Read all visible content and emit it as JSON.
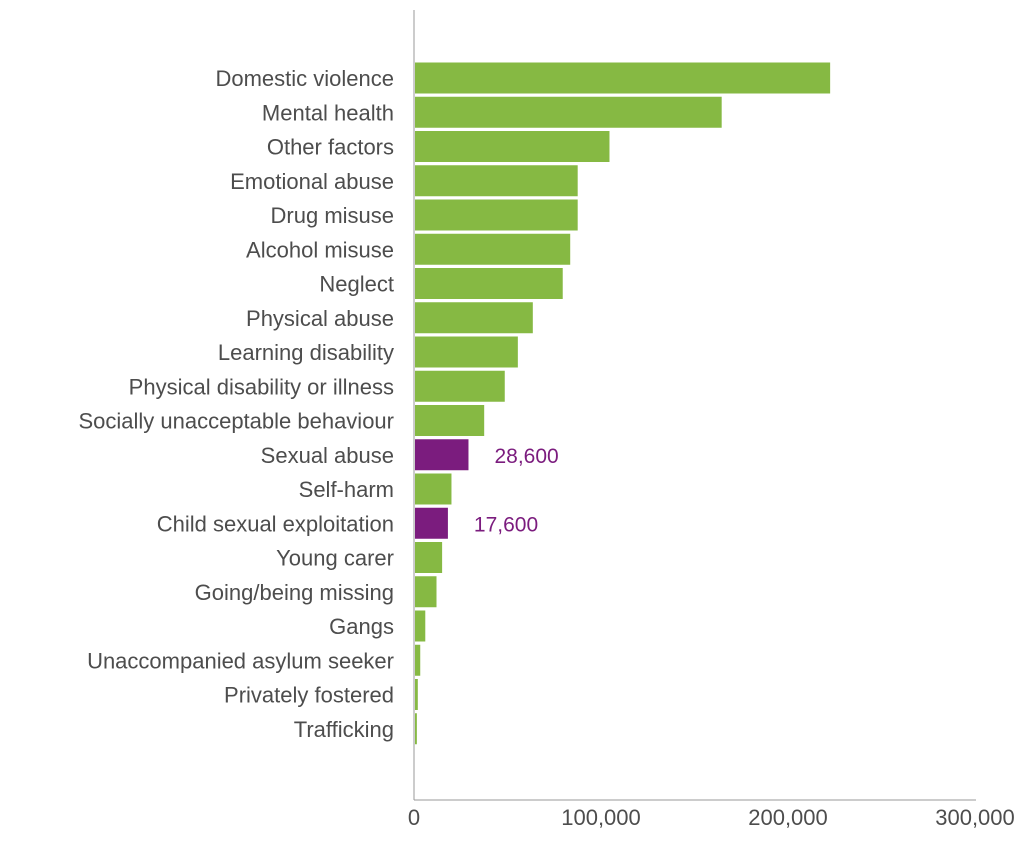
{
  "chart_data": {
    "type": "bar",
    "orientation": "horizontal",
    "title": "",
    "xlabel": "",
    "ylabel": "",
    "xlim": [
      0,
      300000
    ],
    "x_ticks": [
      0,
      100000,
      200000,
      300000
    ],
    "x_tick_labels": [
      "0",
      "100,000",
      "200,000",
      "300,000"
    ],
    "grid": false,
    "categories": [
      "Domestic violence",
      "Mental health",
      "Other factors",
      "Emotional abuse",
      "Drug misuse",
      "Alcohol misuse",
      "Neglect",
      "Physical abuse",
      "Learning disability",
      "Physical disability or illness",
      "Socially unacceptable behaviour",
      "Sexual abuse",
      "Self-harm",
      "Child sexual exploitation",
      "Young carer",
      "Going/being missing",
      "Gangs",
      "Unaccompanied asylum seeker",
      "Privately fostered",
      "Trafficking"
    ],
    "values": [
      222000,
      164000,
      104000,
      87000,
      87000,
      83000,
      79000,
      63000,
      55000,
      48000,
      37000,
      28600,
      19500,
      17600,
      14500,
      11500,
      5500,
      2800,
      1500,
      1000
    ],
    "highlighted": [
      false,
      false,
      false,
      false,
      false,
      false,
      false,
      false,
      false,
      false,
      false,
      true,
      false,
      true,
      false,
      false,
      false,
      false,
      false,
      false
    ],
    "data_labels": [
      "",
      "",
      "",
      "",
      "",
      "",
      "",
      "",
      "",
      "",
      "",
      "28,600",
      "",
      "17,600",
      "",
      "",
      "",
      "",
      "",
      ""
    ],
    "colors": {
      "default": "#86b943",
      "highlight": "#7b1c7e",
      "label_text": "#4d4d4d",
      "highlight_text": "#7b1c7e",
      "axis": "#999999"
    }
  }
}
